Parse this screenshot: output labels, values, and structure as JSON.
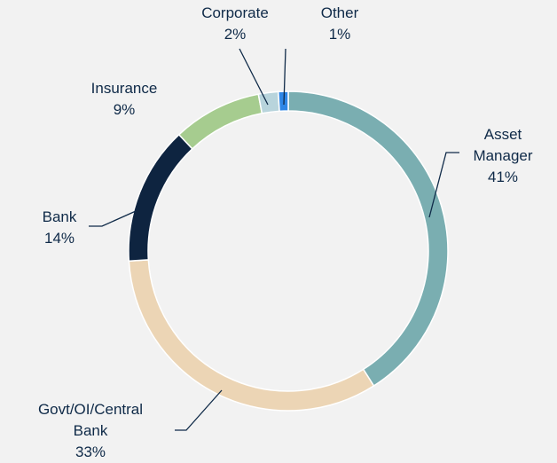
{
  "chart_data": {
    "type": "donut",
    "categories": [
      "Asset Manager",
      "Govt/OI/Central Bank",
      "Bank",
      "Insurance",
      "Corporate",
      "Other"
    ],
    "values": [
      41,
      33,
      14,
      9,
      2,
      1
    ],
    "value_labels": [
      "41%",
      "33%",
      "14%",
      "9%",
      "2%",
      "1%"
    ],
    "colors": [
      "#7aaeb1",
      "#ecd5b5",
      "#0e2440",
      "#a6cc8f",
      "#b8d4dc",
      "#2e86e6"
    ]
  }
}
